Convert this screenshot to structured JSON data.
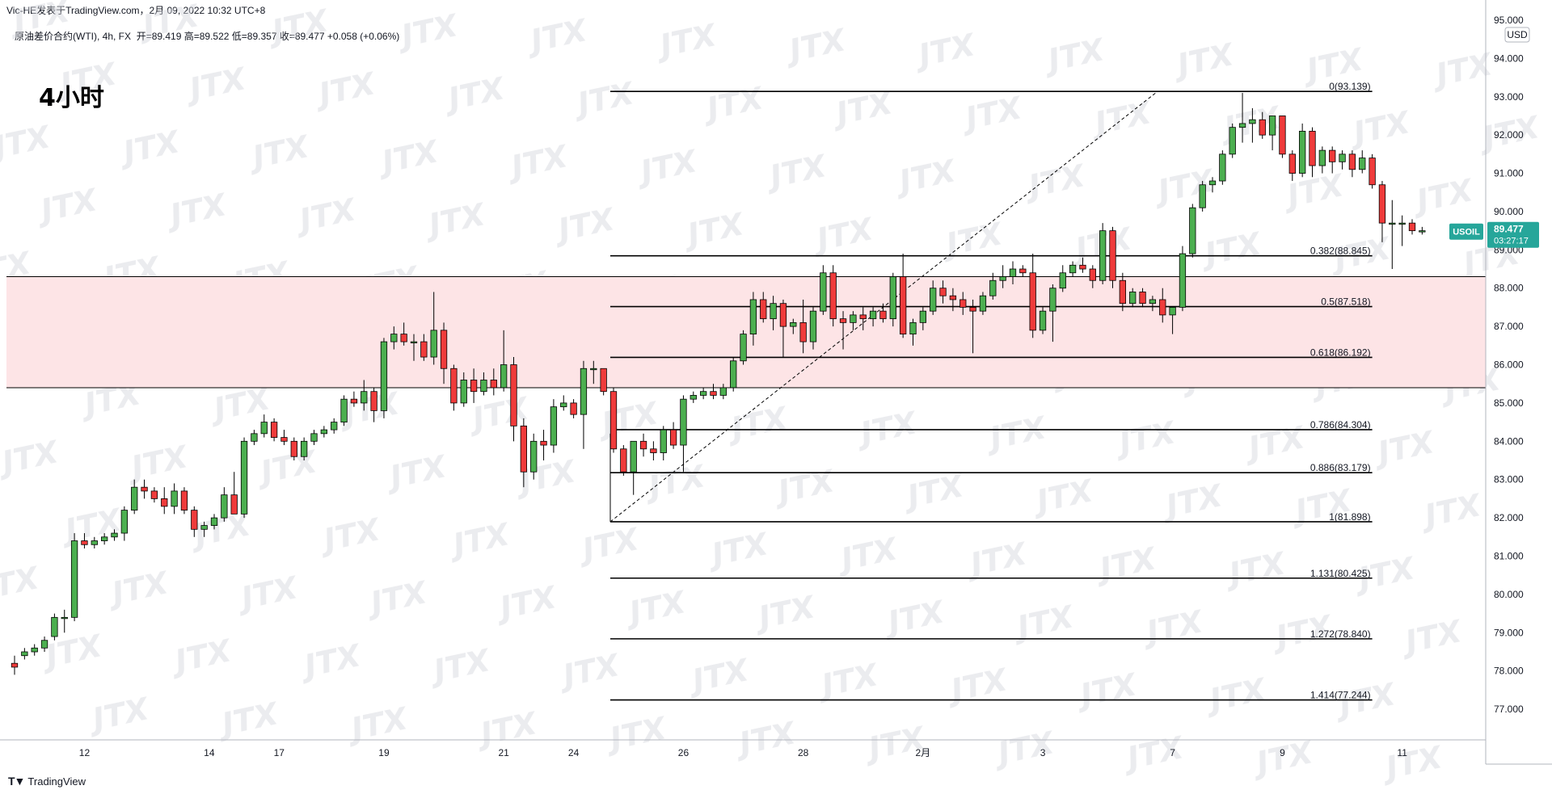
{
  "header": {
    "publisher": "Vic-HE发表于TradingView.com，2月 09, 2022 10:32 UTC+8",
    "instrument": "原油差价合约(WTI), 4h, FX",
    "ohlc": "开=89.419  高=89.522  低=89.357  收=89.477  +0.058 (+0.06%)"
  },
  "timeframe_label": "4小时",
  "watermark_text": "JTX",
  "footer_brand": "TradingView",
  "price_tag": {
    "symbol": "USOIL",
    "price": "89.477",
    "countdown": "03:27:17",
    "color": "#26a69a"
  },
  "colors": {
    "up": "#4caf50",
    "down": "#ef3b3b",
    "zone": "#fde4e6",
    "line": "#000000"
  },
  "chart_data": {
    "type": "candlestick",
    "currency": "USD",
    "y_range": [
      76.2,
      95.4
    ],
    "y_ticks": [
      "95.000",
      "94.000",
      "93.000",
      "92.000",
      "91.000",
      "90.000",
      "89.000",
      "88.000",
      "87.000",
      "86.000",
      "85.000",
      "84.000",
      "83.000",
      "82.000",
      "81.000",
      "80.000",
      "79.000",
      "78.000",
      "77.000"
    ],
    "x_ticks": [
      {
        "i": 7,
        "label": "12"
      },
      {
        "i": 19.5,
        "label": "14"
      },
      {
        "i": 26.5,
        "label": "17"
      },
      {
        "i": 37,
        "label": "19"
      },
      {
        "i": 49,
        "label": "21"
      },
      {
        "i": 56,
        "label": "24"
      },
      {
        "i": 67,
        "label": "26"
      },
      {
        "i": 79,
        "label": "28"
      },
      {
        "i": 91,
        "label": "2月"
      },
      {
        "i": 103,
        "label": "3"
      },
      {
        "i": 116,
        "label": "7"
      },
      {
        "i": 127,
        "label": "9"
      },
      {
        "i": 139,
        "label": "11"
      }
    ],
    "x_count": 140,
    "resistance_zone": [
      85.4,
      88.3
    ],
    "fibonacci": {
      "start_index": 60,
      "end_index": 136,
      "anchor_low": {
        "i": 60,
        "price": 81.898
      },
      "anchor_high": {
        "i": 114.5,
        "price": 93.139
      },
      "levels": [
        {
          "label": "0(93.139)",
          "price": 93.139
        },
        {
          "label": "0.382(88.845)",
          "price": 88.845
        },
        {
          "label": "0.5(87.518)",
          "price": 87.518
        },
        {
          "label": "0.618(86.192)",
          "price": 86.192
        },
        {
          "label": "0.786(84.304)",
          "price": 84.304
        },
        {
          "label": "0.886(83.179)",
          "price": 83.179
        },
        {
          "label": "1(81.898)",
          "price": 81.898
        },
        {
          "label": "1.131(80.425)",
          "price": 80.425
        },
        {
          "label": "1.272(78.840)",
          "price": 78.84
        },
        {
          "label": "1.414(77.244)",
          "price": 77.244
        }
      ]
    },
    "candles": [
      [
        78.2,
        78.4,
        77.9,
        78.1
      ],
      [
        78.4,
        78.6,
        78.3,
        78.5
      ],
      [
        78.5,
        78.7,
        78.4,
        78.6
      ],
      [
        78.6,
        78.9,
        78.5,
        78.8
      ],
      [
        78.9,
        79.5,
        78.8,
        79.4
      ],
      [
        79.4,
        79.6,
        79.0,
        79.4
      ],
      [
        79.4,
        81.6,
        79.3,
        81.4
      ],
      [
        81.4,
        81.6,
        81.2,
        81.3
      ],
      [
        81.3,
        81.5,
        81.2,
        81.4
      ],
      [
        81.4,
        81.6,
        81.3,
        81.5
      ],
      [
        81.5,
        81.7,
        81.4,
        81.6
      ],
      [
        81.6,
        82.3,
        81.4,
        82.2
      ],
      [
        82.2,
        83.0,
        82.1,
        82.8
      ],
      [
        82.8,
        83.0,
        82.5,
        82.7
      ],
      [
        82.7,
        82.8,
        82.4,
        82.5
      ],
      [
        82.5,
        82.8,
        82.1,
        82.3
      ],
      [
        82.3,
        82.9,
        82.1,
        82.7
      ],
      [
        82.7,
        82.8,
        82.1,
        82.2
      ],
      [
        82.2,
        82.3,
        81.5,
        81.7
      ],
      [
        81.7,
        81.9,
        81.5,
        81.8
      ],
      [
        81.8,
        82.1,
        81.7,
        82.0
      ],
      [
        82.0,
        82.8,
        81.9,
        82.6
      ],
      [
        82.6,
        83.2,
        82.1,
        82.1
      ],
      [
        82.1,
        84.1,
        82.0,
        84.0
      ],
      [
        84.0,
        84.3,
        83.9,
        84.2
      ],
      [
        84.2,
        84.7,
        84.1,
        84.5
      ],
      [
        84.5,
        84.6,
        84.0,
        84.1
      ],
      [
        84.1,
        84.3,
        83.9,
        84.0
      ],
      [
        84.0,
        84.1,
        83.5,
        83.6
      ],
      [
        83.6,
        84.1,
        83.5,
        84.0
      ],
      [
        84.0,
        84.3,
        83.9,
        84.2
      ],
      [
        84.2,
        84.4,
        84.1,
        84.3
      ],
      [
        84.3,
        84.6,
        84.2,
        84.5
      ],
      [
        84.5,
        85.2,
        84.4,
        85.1
      ],
      [
        85.1,
        85.3,
        84.9,
        85.0
      ],
      [
        85.0,
        85.6,
        84.8,
        85.3
      ],
      [
        85.3,
        85.4,
        84.5,
        84.8
      ],
      [
        84.8,
        86.7,
        84.6,
        86.6
      ],
      [
        86.6,
        87.0,
        86.4,
        86.8
      ],
      [
        86.8,
        87.1,
        86.5,
        86.6
      ],
      [
        86.6,
        86.8,
        86.1,
        86.6
      ],
      [
        86.6,
        86.8,
        86.1,
        86.2
      ],
      [
        86.2,
        87.9,
        86.0,
        86.9
      ],
      [
        86.9,
        87.1,
        85.5,
        85.9
      ],
      [
        85.9,
        86.0,
        84.8,
        85.0
      ],
      [
        85.0,
        85.8,
        84.9,
        85.6
      ],
      [
        85.6,
        85.9,
        85.0,
        85.3
      ],
      [
        85.3,
        85.8,
        85.2,
        85.6
      ],
      [
        85.6,
        85.9,
        85.2,
        85.4
      ],
      [
        85.4,
        86.9,
        85.3,
        86.0
      ],
      [
        86.0,
        86.2,
        84.0,
        84.4
      ],
      [
        84.4,
        84.6,
        82.8,
        83.2
      ],
      [
        83.2,
        84.2,
        83.0,
        84.0
      ],
      [
        84.0,
        84.3,
        83.5,
        83.9
      ],
      [
        83.9,
        85.1,
        83.7,
        84.9
      ],
      [
        84.9,
        85.2,
        84.8,
        85.0
      ],
      [
        85.0,
        85.1,
        84.6,
        84.7
      ],
      [
        84.7,
        86.1,
        83.8,
        85.9
      ],
      [
        85.9,
        86.1,
        85.5,
        85.9
      ],
      [
        85.9,
        85.9,
        85.2,
        85.3
      ],
      [
        85.3,
        85.4,
        83.7,
        83.8
      ],
      [
        83.8,
        83.9,
        83.1,
        83.2
      ],
      [
        83.2,
        84.0,
        82.6,
        84.0
      ],
      [
        84.0,
        84.2,
        83.6,
        83.8
      ],
      [
        83.8,
        84.0,
        83.5,
        83.7
      ],
      [
        83.7,
        84.4,
        83.5,
        84.3
      ],
      [
        84.3,
        84.5,
        83.8,
        83.9
      ],
      [
        83.9,
        85.2,
        83.2,
        85.1
      ],
      [
        85.1,
        85.3,
        85.0,
        85.2
      ],
      [
        85.2,
        85.4,
        85.1,
        85.3
      ],
      [
        85.3,
        85.5,
        85.1,
        85.2
      ],
      [
        85.2,
        85.5,
        85.1,
        85.4
      ],
      [
        85.4,
        86.2,
        85.3,
        86.1
      ],
      [
        86.1,
        86.9,
        86.0,
        86.8
      ],
      [
        86.8,
        87.9,
        86.5,
        87.7
      ],
      [
        87.7,
        87.9,
        87.1,
        87.2
      ],
      [
        87.2,
        87.8,
        86.9,
        87.6
      ],
      [
        87.6,
        87.7,
        86.2,
        87.0
      ],
      [
        87.0,
        87.2,
        86.8,
        87.1
      ],
      [
        87.1,
        87.7,
        86.3,
        86.6
      ],
      [
        86.6,
        87.5,
        86.4,
        87.4
      ],
      [
        87.4,
        88.6,
        87.3,
        88.4
      ],
      [
        88.4,
        88.6,
        87.0,
        87.2
      ],
      [
        87.2,
        87.4,
        86.4,
        87.1
      ],
      [
        87.1,
        87.4,
        86.9,
        87.3
      ],
      [
        87.3,
        87.5,
        86.9,
        87.2
      ],
      [
        87.2,
        87.5,
        87.0,
        87.4
      ],
      [
        87.4,
        87.6,
        87.1,
        87.2
      ],
      [
        87.2,
        88.4,
        87.0,
        88.3
      ],
      [
        88.3,
        88.9,
        86.7,
        86.8
      ],
      [
        86.8,
        87.2,
        86.5,
        87.1
      ],
      [
        87.1,
        87.5,
        86.9,
        87.4
      ],
      [
        87.4,
        88.2,
        87.3,
        88.0
      ],
      [
        88.0,
        88.2,
        87.6,
        87.8
      ],
      [
        87.8,
        88.0,
        87.4,
        87.7
      ],
      [
        87.7,
        87.9,
        87.3,
        87.5
      ],
      [
        87.5,
        87.7,
        86.3,
        87.4
      ],
      [
        87.4,
        87.9,
        87.3,
        87.8
      ],
      [
        87.8,
        88.4,
        87.7,
        88.2
      ],
      [
        88.2,
        88.6,
        88.0,
        88.3
      ],
      [
        88.3,
        88.7,
        88.1,
        88.5
      ],
      [
        88.5,
        88.6,
        88.3,
        88.4
      ],
      [
        88.4,
        88.9,
        86.7,
        86.9
      ],
      [
        86.9,
        87.5,
        86.8,
        87.4
      ],
      [
        87.4,
        88.1,
        86.6,
        88.0
      ],
      [
        88.0,
        88.6,
        87.9,
        88.4
      ],
      [
        88.4,
        88.7,
        88.3,
        88.6
      ],
      [
        88.6,
        88.8,
        88.4,
        88.5
      ],
      [
        88.5,
        88.6,
        88.0,
        88.2
      ],
      [
        88.2,
        89.7,
        88.1,
        89.5
      ],
      [
        89.5,
        89.6,
        88.0,
        88.2
      ],
      [
        88.2,
        88.4,
        87.4,
        87.6
      ],
      [
        87.6,
        88.0,
        87.5,
        87.9
      ],
      [
        87.9,
        88.0,
        87.5,
        87.6
      ],
      [
        87.6,
        87.8,
        87.4,
        87.7
      ],
      [
        87.7,
        88.0,
        87.1,
        87.3
      ],
      [
        87.3,
        87.5,
        86.8,
        87.5
      ],
      [
        87.5,
        89.1,
        87.4,
        88.9
      ],
      [
        88.9,
        90.2,
        88.8,
        90.1
      ],
      [
        90.1,
        90.8,
        90.0,
        90.7
      ],
      [
        90.7,
        90.9,
        90.5,
        90.8
      ],
      [
        90.8,
        91.6,
        90.7,
        91.5
      ],
      [
        91.5,
        92.3,
        91.4,
        92.2
      ],
      [
        92.2,
        93.1,
        91.8,
        92.3
      ],
      [
        92.3,
        92.7,
        91.8,
        92.4
      ],
      [
        92.4,
        92.6,
        91.9,
        92.0
      ],
      [
        92.0,
        92.5,
        91.6,
        92.5
      ],
      [
        92.5,
        92.5,
        91.4,
        91.5
      ],
      [
        91.5,
        91.6,
        90.8,
        91.0
      ],
      [
        91.0,
        92.3,
        90.9,
        92.1
      ],
      [
        92.1,
        92.2,
        90.9,
        91.2
      ],
      [
        91.2,
        91.7,
        91.0,
        91.6
      ],
      [
        91.6,
        91.7,
        91.0,
        91.3
      ],
      [
        91.3,
        91.6,
        91.1,
        91.5
      ],
      [
        91.5,
        91.6,
        90.9,
        91.1
      ],
      [
        91.1,
        91.6,
        91.0,
        91.4
      ],
      [
        91.4,
        91.5,
        90.6,
        90.7
      ],
      [
        90.7,
        90.8,
        89.2,
        89.7
      ],
      [
        89.7,
        90.3,
        88.5,
        89.7
      ],
      [
        89.7,
        89.9,
        89.1,
        89.7
      ],
      [
        89.7,
        89.8,
        89.4,
        89.5
      ],
      [
        89.5,
        89.6,
        89.4,
        89.5
      ]
    ]
  }
}
